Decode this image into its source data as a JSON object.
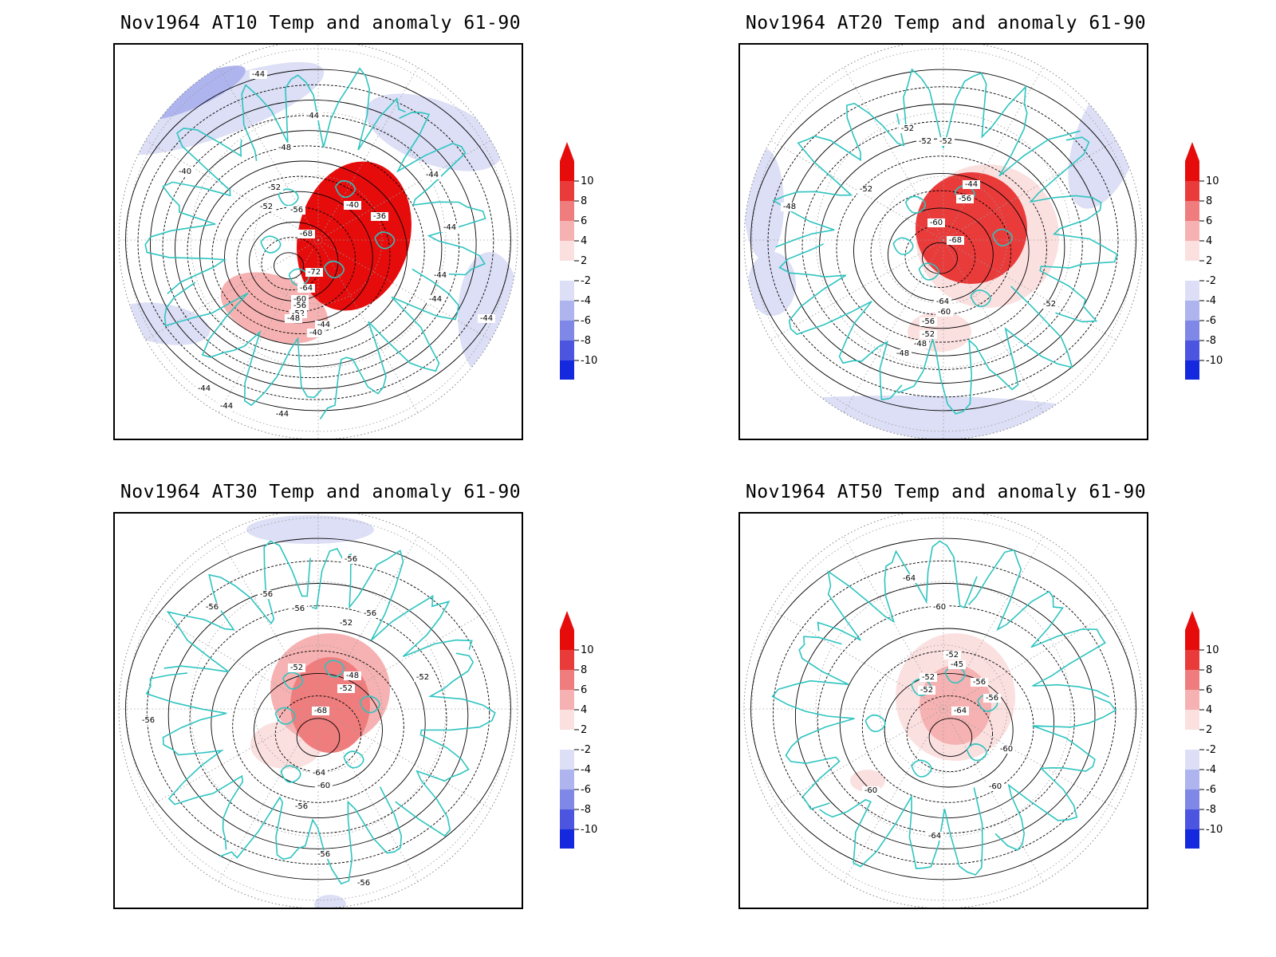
{
  "palette": {
    "coast": "#2ec4c0",
    "contour": "#000000",
    "grid": "#9a9a9a",
    "neg": [
      "#dcdff5",
      "#aeb4ee",
      "#7f88e6",
      "#4b55e0",
      "#1428de"
    ],
    "pos": [
      "#fbe0e0",
      "#f6b2b2",
      "#ef7d7d",
      "#ea3b3b",
      "#e60c0c"
    ]
  },
  "colorbar": {
    "labels": [
      "10",
      "8",
      "6",
      "4",
      "2",
      "-2",
      "-4",
      "-6",
      "-8",
      "-10"
    ],
    "arrow_up_color": "#e60c0c",
    "arrow_down_color": "#1428de"
  },
  "panels": [
    {
      "title": "Nov1964 AT10 Temp and anomaly 61-90",
      "contour_labels": [
        "-44",
        "-44",
        "-48",
        "-40",
        "-52",
        "-52",
        "-56",
        "-68",
        "-72",
        "-64",
        "-60",
        "-56",
        "-52",
        "-48",
        "-44",
        "-40",
        "-40",
        "-36",
        "-44",
        "-44",
        "-44",
        "-44",
        "-44",
        "-44",
        "-44",
        "-44"
      ]
    },
    {
      "title": "Nov1964 AT20 Temp and anomaly 61-90",
      "contour_labels": [
        "-52",
        "-52",
        "-52",
        "-48",
        "-44",
        "-56",
        "-52",
        "-60",
        "-68",
        "-64",
        "-60",
        "-56",
        "-52",
        "-48",
        "-48",
        "-52"
      ]
    },
    {
      "title": "Nov1964 AT30 Temp and anomaly 61-90",
      "contour_labels": [
        "-56",
        "-56",
        "-56",
        "-56",
        "-56",
        "-52",
        "-52",
        "-48",
        "-52",
        "-68",
        "-52",
        "-64",
        "-60",
        "-56",
        "-56",
        "-56",
        "-56"
      ]
    },
    {
      "title": "Nov1964 AT50 Temp and anomaly 61-90",
      "contour_labels": [
        "-64",
        "-60",
        "-52",
        "-45",
        "-52",
        "-56",
        "-52",
        "-56",
        "-64",
        "-60",
        "-60",
        "-60",
        "-64"
      ]
    }
  ]
}
